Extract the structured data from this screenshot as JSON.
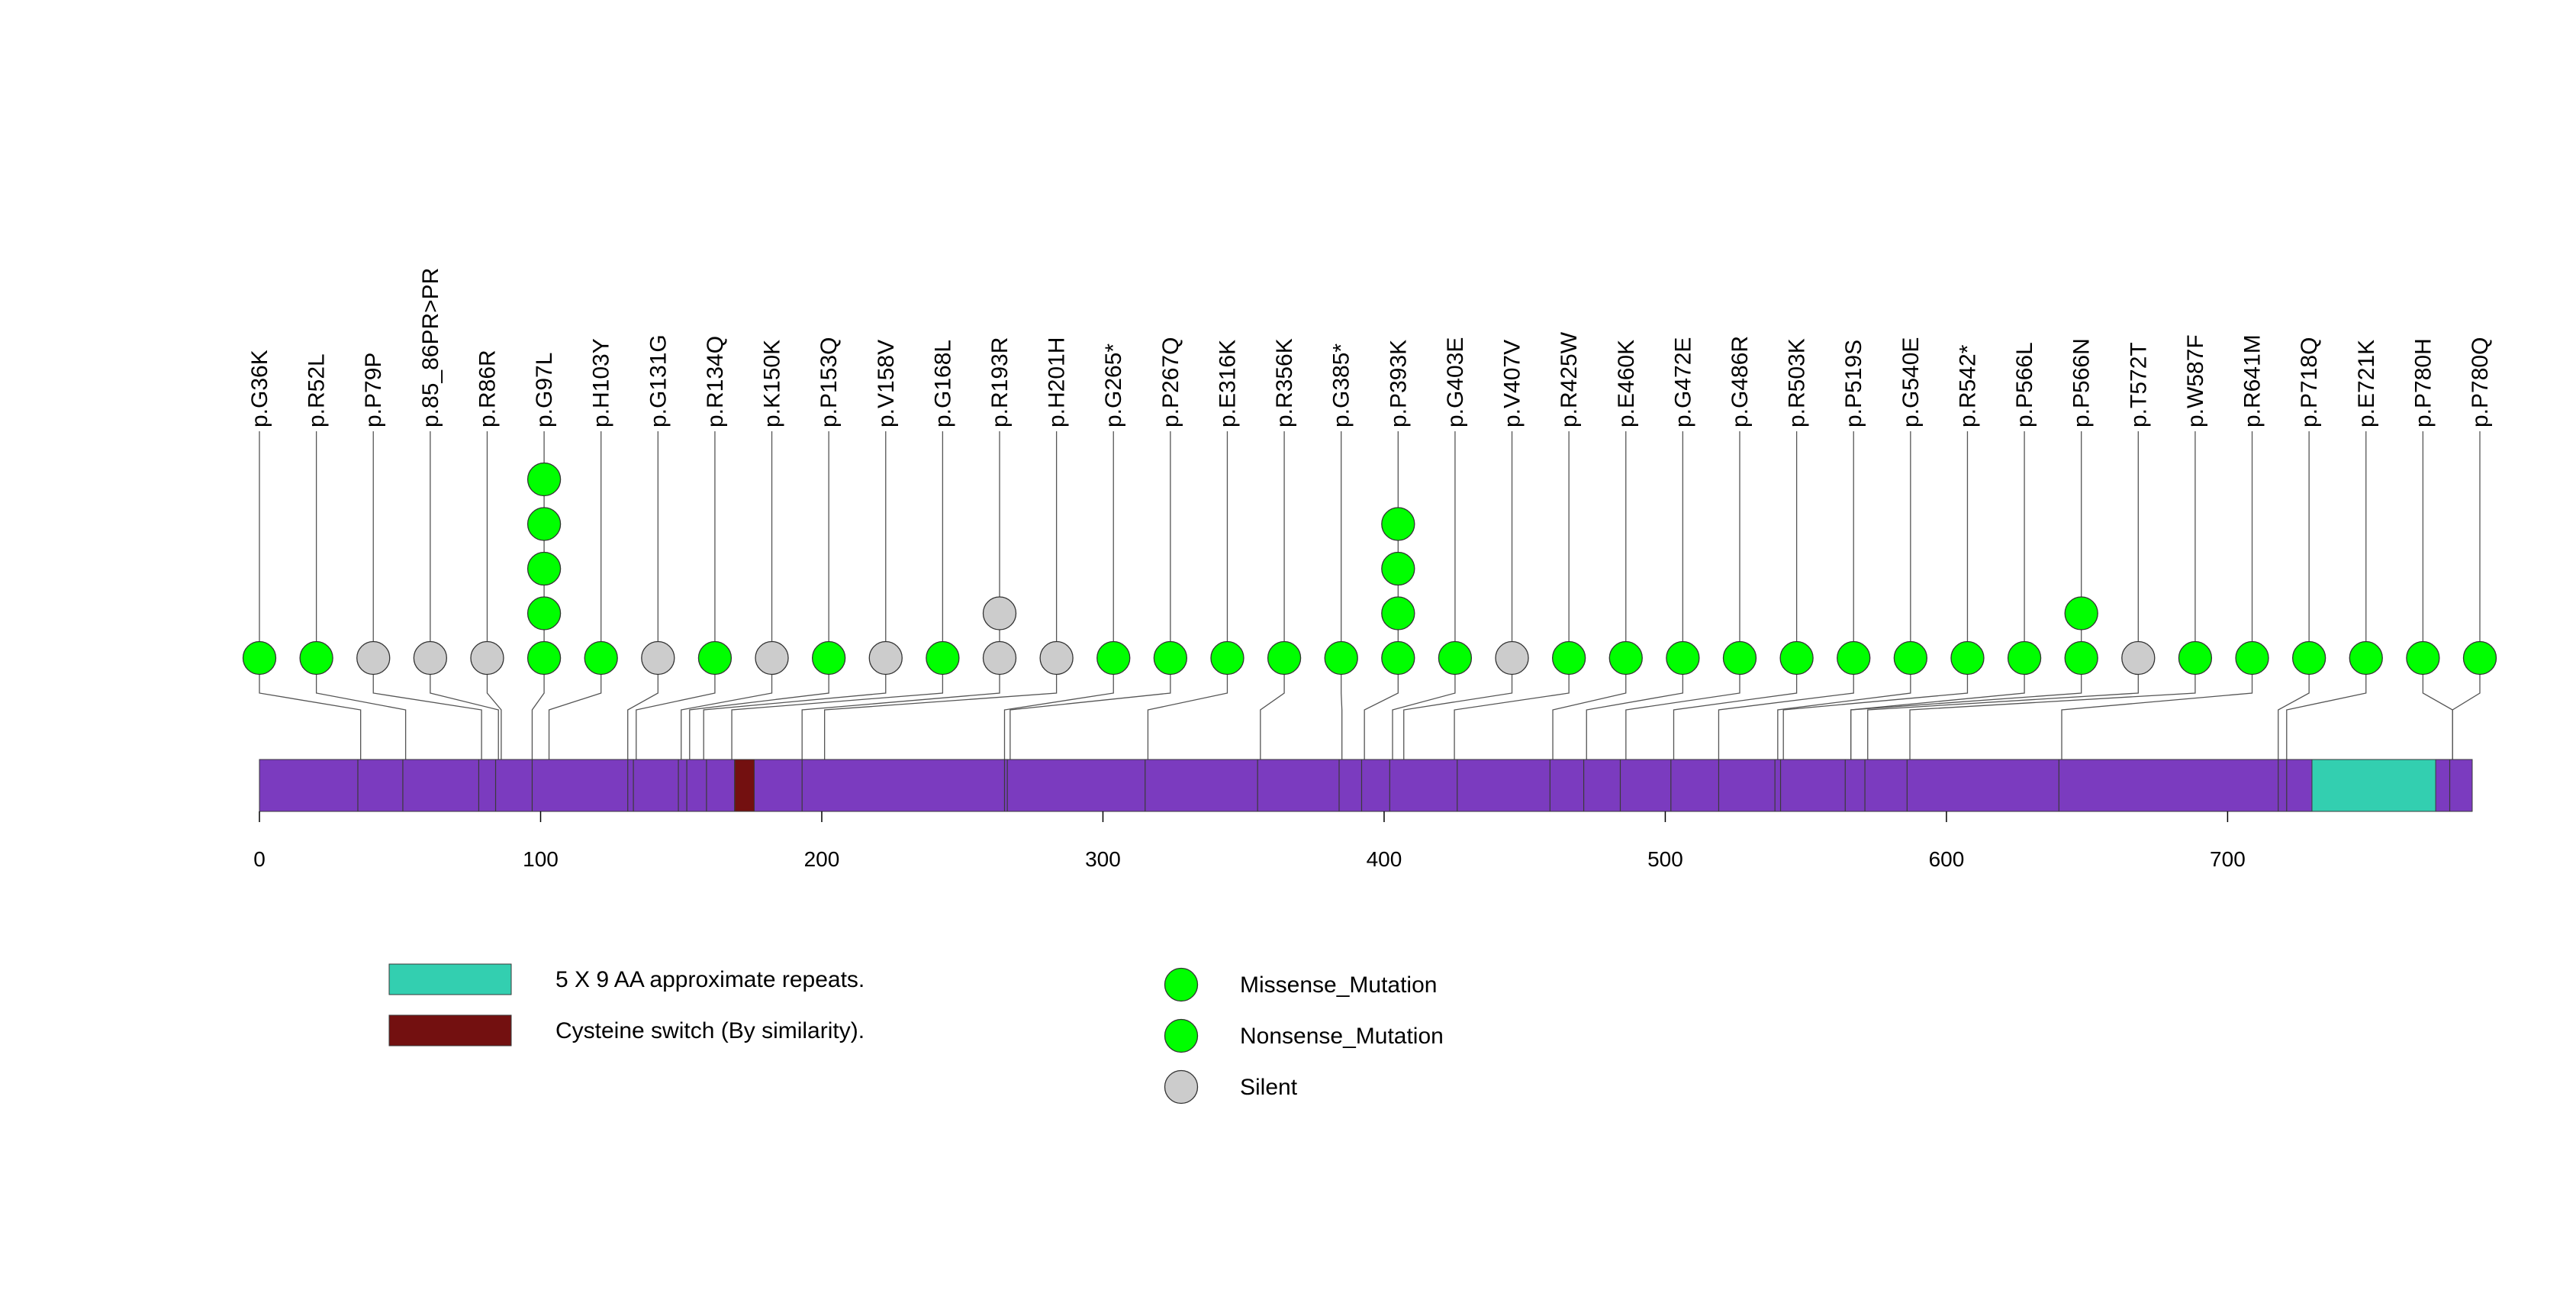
{
  "chart_data": {
    "type": "lollipop",
    "protein_length": 787,
    "axis": {
      "ticks": [
        0,
        100,
        200,
        300,
        400,
        500,
        600,
        700
      ],
      "range": [
        0,
        787
      ]
    },
    "backbone_color": "#7b3bbf",
    "domains": [
      {
        "name": "5 X 9 AA approximate repeats.",
        "start": 730,
        "end": 774,
        "color": "#33cfb0"
      },
      {
        "name": "Cysteine switch (By similarity).",
        "start": 169,
        "end": 176,
        "color": "#731010"
      }
    ],
    "exon_boundaries": [
      35,
      51,
      78,
      84,
      97,
      131,
      133,
      149,
      152,
      159,
      169,
      193,
      265,
      266,
      315,
      355,
      384,
      392,
      402,
      426,
      459,
      471,
      484,
      502,
      519,
      539,
      541,
      564,
      571,
      586,
      640,
      718,
      721,
      779
    ],
    "mutation_types": [
      {
        "name": "Missense_Mutation",
        "color": "#00ff00"
      },
      {
        "name": "Nonsense_Mutation",
        "color": "#00ff00"
      },
      {
        "name": "Silent",
        "color": "#cccccc"
      }
    ],
    "mutations": [
      {
        "label": "p.G36K",
        "pos": 36,
        "count": 1,
        "type": "Missense_Mutation"
      },
      {
        "label": "p.R52L",
        "pos": 52,
        "count": 1,
        "type": "Missense_Mutation"
      },
      {
        "label": "p.P79P",
        "pos": 79,
        "count": 1,
        "type": "Silent"
      },
      {
        "label": "p.85_86PR>PR",
        "pos": 85,
        "count": 1,
        "type": "Silent"
      },
      {
        "label": "p.R86R",
        "pos": 86,
        "count": 1,
        "type": "Silent"
      },
      {
        "label": "p.G97L",
        "pos": 97,
        "count": 5,
        "type": "Missense_Mutation"
      },
      {
        "label": "p.H103Y",
        "pos": 103,
        "count": 1,
        "type": "Missense_Mutation"
      },
      {
        "label": "p.G131G",
        "pos": 131,
        "count": 1,
        "type": "Silent"
      },
      {
        "label": "p.R134Q",
        "pos": 134,
        "count": 1,
        "type": "Missense_Mutation"
      },
      {
        "label": "p.K150K",
        "pos": 150,
        "count": 1,
        "type": "Silent"
      },
      {
        "label": "p.P153Q",
        "pos": 153,
        "count": 1,
        "type": "Missense_Mutation"
      },
      {
        "label": "p.V158V",
        "pos": 158,
        "count": 1,
        "type": "Silent"
      },
      {
        "label": "p.G168L",
        "pos": 168,
        "count": 1,
        "type": "Missense_Mutation"
      },
      {
        "label": "p.R193R",
        "pos": 193,
        "count": 2,
        "type": "Silent"
      },
      {
        "label": "p.H201H",
        "pos": 201,
        "count": 1,
        "type": "Silent"
      },
      {
        "label": "p.G265*",
        "pos": 265,
        "count": 1,
        "type": "Nonsense_Mutation"
      },
      {
        "label": "p.P267Q",
        "pos": 267,
        "count": 1,
        "type": "Missense_Mutation"
      },
      {
        "label": "p.E316K",
        "pos": 316,
        "count": 1,
        "type": "Missense_Mutation"
      },
      {
        "label": "p.R356K",
        "pos": 356,
        "count": 1,
        "type": "Missense_Mutation"
      },
      {
        "label": "p.G385*",
        "pos": 385,
        "count": 1,
        "type": "Nonsense_Mutation"
      },
      {
        "label": "p.P393K",
        "pos": 393,
        "count": 4,
        "type": "Missense_Mutation"
      },
      {
        "label": "p.G403E",
        "pos": 403,
        "count": 1,
        "type": "Missense_Mutation"
      },
      {
        "label": "p.V407V",
        "pos": 407,
        "count": 1,
        "type": "Silent"
      },
      {
        "label": "p.R425W",
        "pos": 425,
        "count": 1,
        "type": "Missense_Mutation"
      },
      {
        "label": "p.E460K",
        "pos": 460,
        "count": 1,
        "type": "Missense_Mutation"
      },
      {
        "label": "p.G472E",
        "pos": 472,
        "count": 1,
        "type": "Missense_Mutation"
      },
      {
        "label": "p.G486R",
        "pos": 486,
        "count": 1,
        "type": "Missense_Mutation"
      },
      {
        "label": "p.R503K",
        "pos": 503,
        "count": 1,
        "type": "Missense_Mutation"
      },
      {
        "label": "p.P519S",
        "pos": 519,
        "count": 1,
        "type": "Missense_Mutation"
      },
      {
        "label": "p.G540E",
        "pos": 540,
        "count": 1,
        "type": "Missense_Mutation"
      },
      {
        "label": "p.R542*",
        "pos": 542,
        "count": 1,
        "type": "Nonsense_Mutation"
      },
      {
        "label": "p.P566L",
        "pos": 566,
        "count": 1,
        "type": "Missense_Mutation"
      },
      {
        "label": "p.P566N",
        "pos": 566,
        "count": 2,
        "type": "Missense_Mutation"
      },
      {
        "label": "p.T572T",
        "pos": 572,
        "count": 1,
        "type": "Silent"
      },
      {
        "label": "p.W587F",
        "pos": 587,
        "count": 1,
        "type": "Missense_Mutation"
      },
      {
        "label": "p.R641M",
        "pos": 641,
        "count": 1,
        "type": "Missense_Mutation"
      },
      {
        "label": "p.P718Q",
        "pos": 718,
        "count": 1,
        "type": "Missense_Mutation"
      },
      {
        "label": "p.E721K",
        "pos": 721,
        "count": 1,
        "type": "Missense_Mutation"
      },
      {
        "label": "p.P780H",
        "pos": 780,
        "count": 1,
        "type": "Missense_Mutation"
      },
      {
        "label": "p.P780Q",
        "pos": 780,
        "count": 1,
        "type": "Missense_Mutation"
      }
    ]
  }
}
